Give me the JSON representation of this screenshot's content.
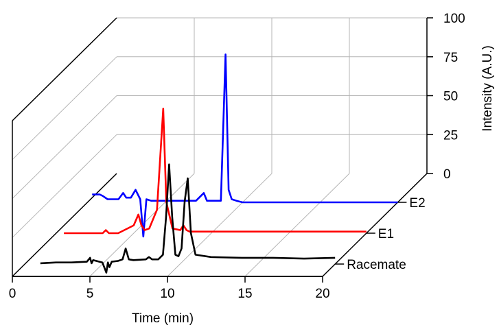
{
  "chart_data": {
    "type": "line",
    "title": "",
    "xlabel": "Time (min)",
    "ylabel": "Intensity (A.U.)",
    "xlim": [
      0,
      20
    ],
    "ylim": [
      0,
      100
    ],
    "x_ticks": [
      "0",
      "5",
      "10",
      "15",
      "20"
    ],
    "y_ticks": [
      "0",
      "25",
      "50",
      "75",
      "100"
    ],
    "grid": true,
    "series": [
      {
        "name": "Racemate",
        "color": "#000000",
        "x": [
          1.0,
          2.0,
          3.0,
          4.0,
          4.2,
          4.3,
          4.4,
          5.0,
          5.25,
          5.35,
          5.45,
          5.6,
          6.0,
          6.3,
          6.5,
          6.7,
          7.0,
          7.8,
          8.0,
          8.2,
          8.6,
          8.9,
          9.1,
          9.3,
          9.5,
          9.7,
          9.9,
          10.1,
          10.3,
          10.5,
          10.7,
          11.0,
          12.0,
          14.0,
          16.0,
          18.0,
          20.0
        ],
        "y": [
          0.5,
          1.0,
          1.0,
          1.5,
          4.0,
          0.5,
          2.5,
          1.0,
          -5.5,
          1.0,
          -2.0,
          1.5,
          2.0,
          3.0,
          10.0,
          3.0,
          2.5,
          3.0,
          4.5,
          3.0,
          3.0,
          6.0,
          30.0,
          64.0,
          30.0,
          6.0,
          5.0,
          10.0,
          40.0,
          55.0,
          20.0,
          6.0,
          4.5,
          4.0,
          4.0,
          3.5,
          4.0
        ]
      },
      {
        "name": "E1",
        "color": "#ff0000",
        "x": [
          0.5,
          2.0,
          3.0,
          3.2,
          3.4,
          4.0,
          5.0,
          5.3,
          5.5,
          5.7,
          6.0,
          6.5,
          6.9,
          7.1,
          7.5,
          8.0,
          8.2,
          8.4,
          8.6,
          8.8,
          9.0,
          9.3,
          9.6,
          10.0,
          11.0,
          13.0,
          15.0,
          16.0,
          20.0
        ],
        "y": [
          0.0,
          0.0,
          0.0,
          2.0,
          0.0,
          0.0,
          5.0,
          12.0,
          5.0,
          2.0,
          3.0,
          15.0,
          80.0,
          20.0,
          3.0,
          2.0,
          5.0,
          2.0,
          1.0,
          1.0,
          1.0,
          1.0,
          1.0,
          1.0,
          1.0,
          1.0,
          1.0,
          1.0,
          1.0
        ]
      },
      {
        "name": "E2",
        "color": "#0000ff",
        "x": [
          0.3,
          0.8,
          1.0,
          1.3,
          2.0,
          2.3,
          2.5,
          2.8,
          3.1,
          3.4,
          3.6,
          3.8,
          4.1,
          5.0,
          6.0,
          7.0,
          7.5,
          7.7,
          8.0,
          8.6,
          8.9,
          9.1,
          9.3,
          9.6,
          10.0,
          12.0,
          14.0,
          16.0,
          20.0
        ],
        "y": [
          5.0,
          5.0,
          4.0,
          2.0,
          2.0,
          6.0,
          3.0,
          3.0,
          8.0,
          2.0,
          -22.0,
          2.0,
          1.0,
          1.0,
          1.0,
          1.0,
          6.0,
          1.0,
          1.0,
          1.0,
          95.0,
          8.0,
          2.0,
          1.0,
          0.0,
          0.0,
          0.0,
          0.0,
          0.0
        ]
      }
    ]
  }
}
